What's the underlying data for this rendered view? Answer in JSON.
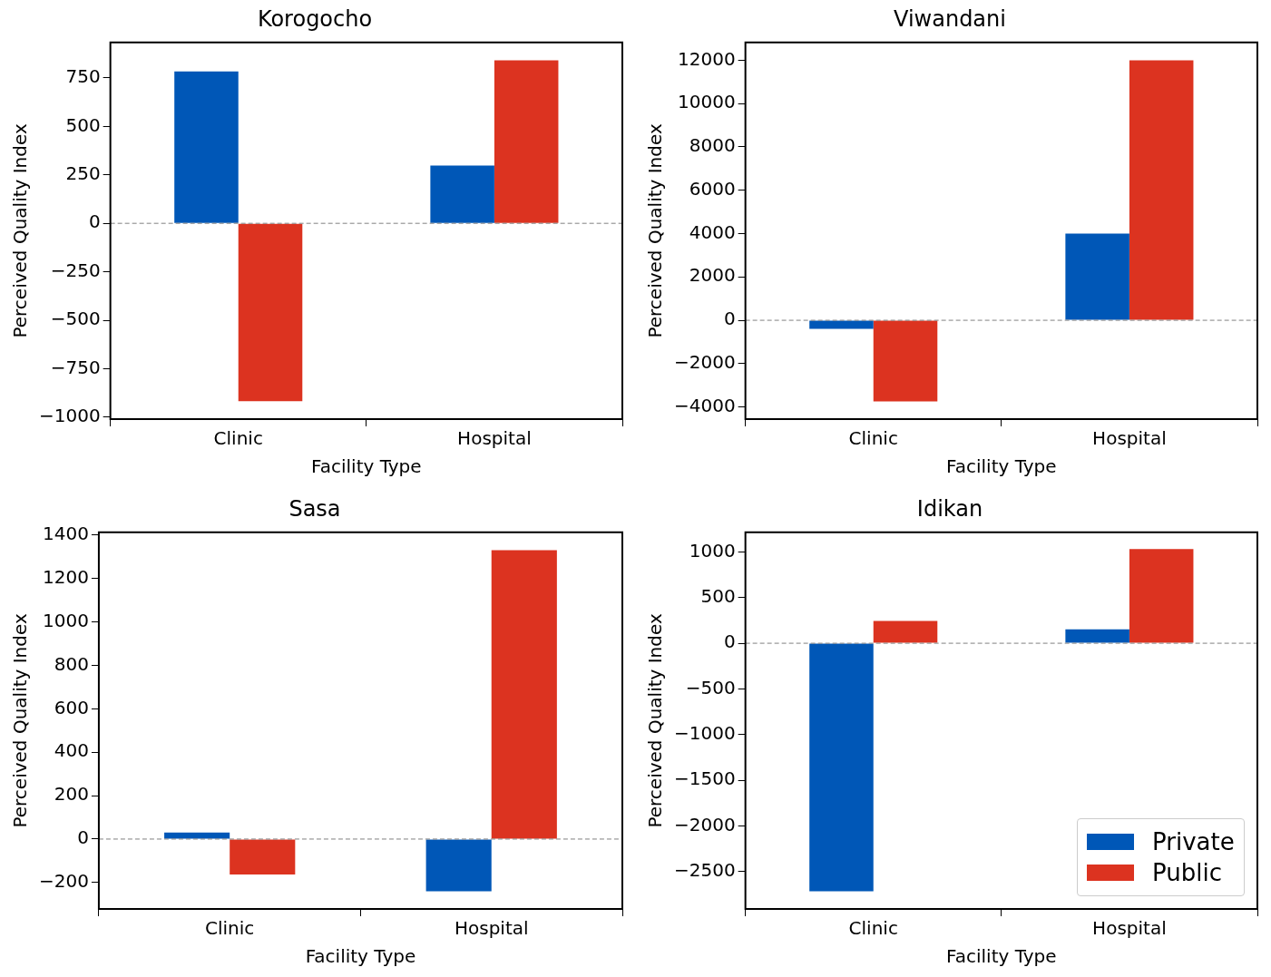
{
  "chart_data": [
    {
      "type": "bar",
      "title": "Korogocho",
      "xlabel": "Facility Type",
      "ylabel": "Perceived Quality Index",
      "categories": [
        "Clinic",
        "Hospital"
      ],
      "series": [
        {
          "color": "#0057b7",
          "values": [
            784,
            298
          ]
        },
        {
          "color": "#dc3320",
          "values": [
            -918,
            841
          ]
        }
      ],
      "ylim": [
        -1010,
        933
      ],
      "yticks": [
        {
          "value": -1000,
          "label": "−1000"
        },
        {
          "value": -750,
          "label": "−750"
        },
        {
          "value": -500,
          "label": "−500"
        },
        {
          "value": -250,
          "label": "−250"
        },
        0,
        250,
        500,
        750
      ],
      "ref_lines": [
        {
          "axis": "y",
          "value": 0,
          "color": "#808080",
          "line_style": "dashed"
        }
      ],
      "grid": false,
      "legend": false
    },
    {
      "type": "bar",
      "title": "Viwandani",
      "xlabel": "Facility Type",
      "ylabel": "Perceived Quality Index",
      "categories": [
        "Clinic",
        "Hospital"
      ],
      "series": [
        {
          "color": "#0057b7",
          "values": [
            -390,
            4000
          ]
        },
        {
          "color": "#dc3320",
          "values": [
            -3740,
            12000
          ]
        }
      ],
      "ylim": [
        -4560,
        12820
      ],
      "yticks": [
        {
          "value": -4000,
          "label": "−4000"
        },
        {
          "value": -2000,
          "label": "−2000"
        },
        0,
        2000,
        4000,
        6000,
        8000,
        10000,
        12000
      ],
      "ref_lines": [
        {
          "axis": "y",
          "value": 0,
          "color": "#808080",
          "line_style": "dashed"
        }
      ],
      "grid": false,
      "legend": false
    },
    {
      "type": "bar",
      "title": "Sasa",
      "xlabel": "Facility Type",
      "ylabel": "Perceived Quality Index",
      "categories": [
        "Clinic",
        "Hospital"
      ],
      "series": [
        {
          "color": "#0057b7",
          "values": [
            30,
            -240
          ]
        },
        {
          "color": "#dc3320",
          "values": [
            -163,
            1331
          ]
        }
      ],
      "ylim": [
        -322,
        1413
      ],
      "yticks": [
        {
          "value": -200,
          "label": "−200"
        },
        0,
        200,
        400,
        600,
        800,
        1000,
        1200,
        1400
      ],
      "ref_lines": [
        {
          "axis": "y",
          "value": 0,
          "color": "#808080",
          "line_style": "dashed"
        }
      ],
      "grid": false,
      "legend": false
    },
    {
      "type": "bar",
      "title": "Idikan",
      "xlabel": "Facility Type",
      "ylabel": "Perceived Quality Index",
      "categories": [
        "Clinic",
        "Hospital"
      ],
      "series": [
        {
          "name": "Private",
          "color": "#0057b7",
          "values": [
            -2714,
            153
          ]
        },
        {
          "name": "Public",
          "color": "#dc3320",
          "values": [
            245,
            1031
          ]
        }
      ],
      "ylim": [
        -2908,
        1214
      ],
      "yticks": [
        {
          "value": -2500,
          "label": "−2500"
        },
        {
          "value": -2000,
          "label": "−2000"
        },
        {
          "value": -1500,
          "label": "−1500"
        },
        {
          "value": -1000,
          "label": "−1000"
        },
        {
          "value": -500,
          "label": "−500"
        },
        0,
        500,
        1000
      ],
      "ref_lines": [
        {
          "axis": "y",
          "value": 0,
          "color": "#808080",
          "line_style": "dashed"
        }
      ],
      "grid": false,
      "legend": "bottom right"
    }
  ]
}
